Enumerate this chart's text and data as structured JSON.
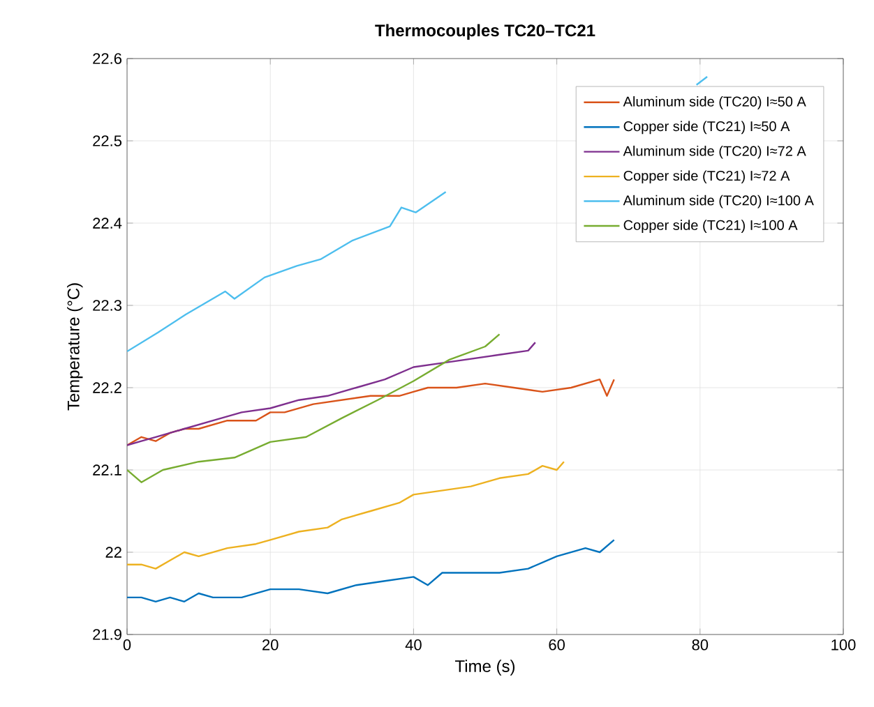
{
  "chart_data": {
    "type": "line",
    "title": "Thermocouples TC20–TC21",
    "xlabel": "Time (s)",
    "ylabel": "Temperature (°C)",
    "xlim": [
      0,
      100
    ],
    "xticks": [
      0,
      20,
      40,
      60,
      80,
      100
    ],
    "ylim": [
      21.9,
      22.6
    ],
    "yticks": [
      21.9,
      22,
      22.1,
      22.2,
      22.3,
      22.4,
      22.5,
      22.6
    ],
    "grid": true,
    "legend": "top right",
    "line_style": "solid",
    "series": [
      {
        "name": "Aluminum side (TC20) I≈50 A",
        "color": "#d95319",
        "x": [
          0,
          2,
          4,
          6,
          8,
          10,
          14,
          18,
          20,
          22,
          26,
          30,
          34,
          38,
          40,
          42,
          46,
          50,
          54,
          58,
          62,
          66,
          67,
          68
        ],
        "values": [
          22.13,
          22.14,
          22.135,
          22.145,
          22.15,
          22.15,
          22.16,
          22.16,
          22.17,
          22.17,
          22.18,
          22.185,
          22.19,
          22.19,
          22.195,
          22.2,
          22.2,
          22.205,
          22.2,
          22.195,
          22.2,
          22.21,
          22.19,
          22.21
        ]
      },
      {
        "name": "Copper side (TC21) I≈50 A",
        "color": "#0072bd",
        "x": [
          0,
          2,
          4,
          6,
          8,
          10,
          12,
          16,
          20,
          24,
          28,
          32,
          36,
          40,
          42,
          44,
          48,
          52,
          56,
          60,
          64,
          66,
          68
        ],
        "values": [
          21.945,
          21.945,
          21.94,
          21.945,
          21.94,
          21.95,
          21.945,
          21.945,
          21.955,
          21.955,
          21.95,
          21.96,
          21.965,
          21.97,
          21.96,
          21.975,
          21.975,
          21.975,
          21.98,
          21.995,
          22.005,
          22.0,
          22.015
        ]
      },
      {
        "name": "Aluminum side (TC20) I≈72 A",
        "color": "#7e2f8e",
        "x": [
          0,
          2,
          4,
          8,
          12,
          16,
          20,
          24,
          28,
          32,
          36,
          40,
          44,
          48,
          52,
          56,
          57
        ],
        "values": [
          22.13,
          22.135,
          22.14,
          22.15,
          22.16,
          22.17,
          22.175,
          22.185,
          22.19,
          22.2,
          22.21,
          22.225,
          22.23,
          22.235,
          22.24,
          22.245,
          22.255
        ]
      },
      {
        "name": "Copper side (TC21) I≈72 A",
        "color": "#edb120",
        "x": [
          0,
          2,
          4,
          6,
          8,
          10,
          14,
          18,
          20,
          24,
          28,
          30,
          34,
          38,
          40,
          44,
          48,
          52,
          56,
          58,
          60,
          61
        ],
        "values": [
          21.985,
          21.985,
          21.98,
          21.99,
          22.0,
          21.995,
          22.005,
          22.01,
          22.015,
          22.025,
          22.03,
          22.04,
          22.05,
          22.06,
          22.07,
          22.075,
          22.08,
          22.09,
          22.095,
          22.105,
          22.1,
          22.11
        ]
      },
      {
        "name": "Aluminum side (TC20) I≈100 A",
        "color": "#4dbeee",
        "x": [
          0,
          4.3,
          8.2,
          13.7,
          15,
          19.2,
          23.7,
          27,
          31.5,
          36.7,
          38.3,
          40.3,
          44.5,
          60,
          79.5,
          81
        ],
        "values": [
          22.244,
          22.267,
          22.289,
          22.317,
          22.308,
          22.334,
          22.348,
          22.356,
          22.379,
          22.396,
          22.419,
          22.413,
          22.438,
          null,
          22.568,
          22.578
        ]
      },
      {
        "name": "Copper side (TC21) I≈100 A",
        "color": "#77ac30",
        "x": [
          0,
          2,
          5,
          10,
          15,
          20,
          25,
          30,
          35,
          40,
          45,
          50,
          52
        ],
        "values": [
          22.1,
          22.085,
          22.1,
          22.11,
          22.115,
          22.134,
          22.14,
          22.163,
          22.185,
          22.208,
          22.234,
          22.25,
          22.265
        ]
      }
    ]
  }
}
